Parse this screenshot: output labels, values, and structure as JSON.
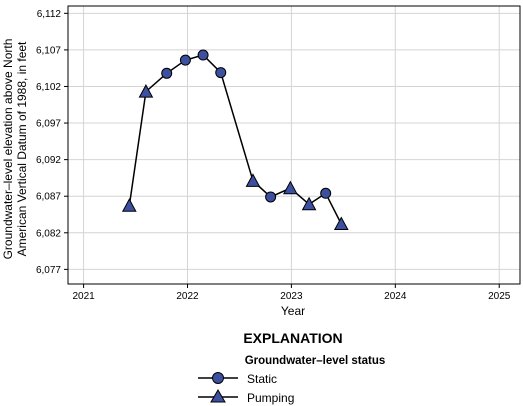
{
  "chart_data": {
    "type": "line",
    "title": "",
    "xlabel": "Year",
    "ylabel_lines": [
      "Groundwater–level elevation above North",
      "American Vertical Datum of 1988, in feet"
    ],
    "xlim": [
      2020.85,
      2025.2
    ],
    "ylim": [
      6075,
      6113
    ],
    "x_ticks": [
      2021,
      2022,
      2023,
      2024,
      2025
    ],
    "x_tick_labels": [
      "2021",
      "2022",
      "2023",
      "2024",
      "2025"
    ],
    "y_ticks": [
      6077,
      6082,
      6087,
      6092,
      6097,
      6102,
      6107,
      6112
    ],
    "y_tick_labels": [
      "6,077",
      "6,082",
      "6,087",
      "6,092",
      "6,097",
      "6,102",
      "6,107",
      "6,112"
    ],
    "grid": true,
    "line_points": [
      {
        "x": 2021.44,
        "y": 6085.7,
        "status": "Pumping"
      },
      {
        "x": 2021.6,
        "y": 6101.3,
        "status": "Pumping"
      },
      {
        "x": 2021.8,
        "y": 6103.8,
        "status": "Static"
      },
      {
        "x": 2021.98,
        "y": 6105.6,
        "status": "Static"
      },
      {
        "x": 2022.15,
        "y": 6106.3,
        "status": "Static"
      },
      {
        "x": 2022.32,
        "y": 6103.9,
        "status": "Static"
      },
      {
        "x": 2022.63,
        "y": 6089.1,
        "status": "Pumping"
      },
      {
        "x": 2022.8,
        "y": 6086.9,
        "status": "Static"
      },
      {
        "x": 2022.99,
        "y": 6088.1,
        "status": "Pumping"
      },
      {
        "x": 2023.17,
        "y": 6085.9,
        "status": "Pumping"
      },
      {
        "x": 2023.33,
        "y": 6087.4,
        "status": "Static"
      },
      {
        "x": 2023.48,
        "y": 6083.2,
        "status": "Pumping"
      }
    ],
    "series": [
      {
        "name": "Static",
        "marker": "circle"
      },
      {
        "name": "Pumping",
        "marker": "triangle"
      }
    ],
    "legend": {
      "title": "EXPLANATION",
      "subtitle": "Groundwater–level status",
      "placement": "bottom-center"
    },
    "colors": {
      "marker_fill": "#3d4f9f",
      "marker_stroke": "#000000",
      "line": "#000000",
      "grid": "#d4d4d4"
    }
  }
}
